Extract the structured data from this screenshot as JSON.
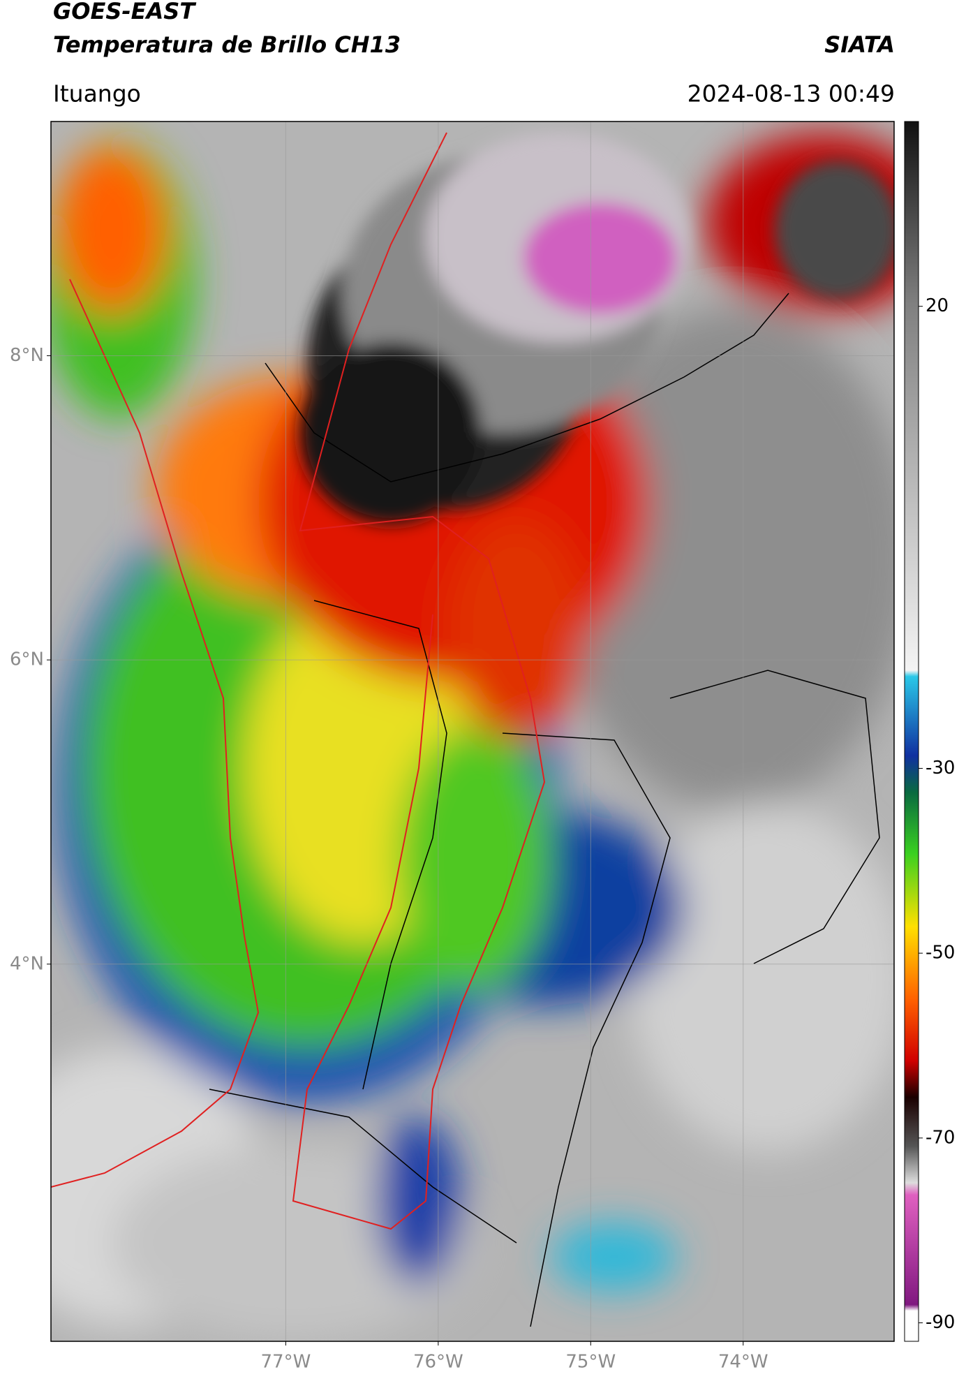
{
  "header": {
    "title": "GOES-EAST",
    "subtitle": "Temperatura de Brillo CH13",
    "brand": "SIATA",
    "location": "Ituango",
    "datetime": "2024-08-13 00:49"
  },
  "map": {
    "xlim": [
      -78.54,
      -73.01
    ],
    "ylim": [
      1.52,
      9.54
    ],
    "xticks": [
      {
        "value": -77,
        "label": "77°W"
      },
      {
        "value": -76,
        "label": "76°W"
      },
      {
        "value": -75,
        "label": "75°W"
      },
      {
        "value": -74,
        "label": "74°W"
      }
    ],
    "yticks": [
      {
        "value": 8,
        "label": "8°N"
      },
      {
        "value": 6,
        "label": "6°N"
      },
      {
        "value": 4,
        "label": "4°N"
      }
    ],
    "grid": true
  },
  "colorbar": {
    "lim": [
      -92,
      40
    ],
    "ticks": [
      20,
      -30,
      -50,
      -70,
      -90
    ]
  }
}
